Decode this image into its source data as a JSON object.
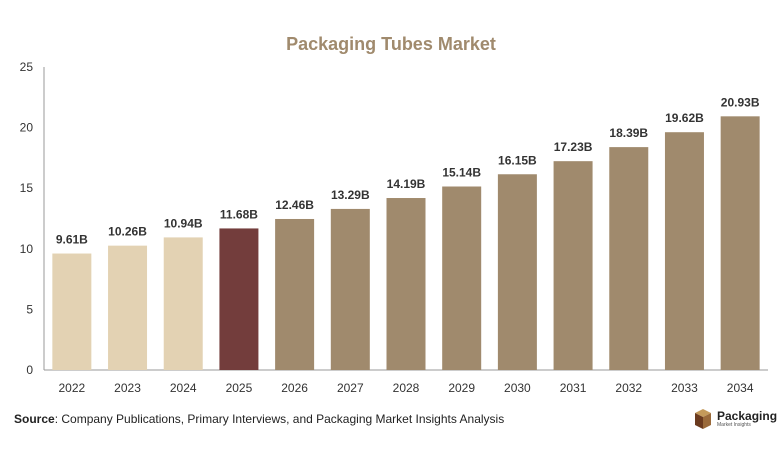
{
  "chart_data": {
    "type": "bar",
    "title": "Packaging Tubes Market",
    "categories": [
      "2022",
      "2023",
      "2024",
      "2025",
      "2026",
      "2027",
      "2028",
      "2029",
      "2030",
      "2031",
      "2032",
      "2033",
      "2034"
    ],
    "values": [
      9.61,
      10.26,
      10.94,
      11.68,
      12.46,
      13.29,
      14.19,
      15.14,
      16.15,
      17.23,
      18.39,
      19.62,
      20.93
    ],
    "data_labels": [
      "9.61B",
      "10.26B",
      "10.94B",
      "11.68B",
      "12.46B",
      "13.29B",
      "14.19B",
      "15.14B",
      "16.15B",
      "17.23B",
      "18.39B",
      "19.62B",
      "20.93B"
    ],
    "bar_colors": [
      "#e3d2b3",
      "#e3d2b3",
      "#e3d2b3",
      "#733d3c",
      "#a08a6d",
      "#a08a6d",
      "#a08a6d",
      "#a08a6d",
      "#a08a6d",
      "#a08a6d",
      "#a08a6d",
      "#a08a6d",
      "#a08a6d"
    ],
    "yticks": [
      "0",
      "5",
      "10",
      "15",
      "20",
      "25"
    ],
    "ylim": [
      0,
      25
    ],
    "xlabel": "",
    "ylabel": "",
    "grid": false,
    "legend": "none"
  },
  "footer": {
    "source_label": "Source",
    "source_text": ": Company Publications, Primary Interviews, and Packaging Market Insights Analysis"
  },
  "logo": {
    "name": "Packaging",
    "subtitle": "Market Insights",
    "colors": {
      "dark": "#6b3b1f",
      "light": "#c49a5a"
    }
  },
  "colors": {
    "title": "#a08a6d",
    "axis": "#999999",
    "label": "#333333"
  }
}
